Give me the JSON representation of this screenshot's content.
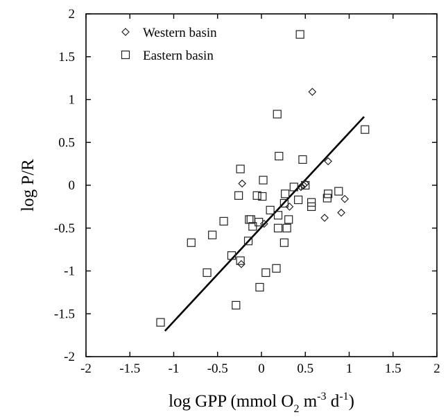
{
  "chart_data": {
    "type": "scatter",
    "xlabel": {
      "main": "log GPP (mmol O",
      "sub1": "2",
      "mid": " m",
      "sup1": "-3",
      "mid2": " d",
      "sup2": "-1",
      "end": ")"
    },
    "ylabel": "log P/R",
    "xlim": [
      -2,
      2
    ],
    "ylim": [
      -2,
      2
    ],
    "xticks": [
      -2,
      -1.5,
      -1,
      -0.5,
      0,
      0.5,
      1,
      1.5,
      2
    ],
    "yticks": [
      -2,
      -1.5,
      -1,
      -0.5,
      0,
      0.5,
      1,
      1.5,
      2
    ],
    "xtick_labels": [
      "-2",
      "-1.5",
      "-1",
      "-0.5",
      "0",
      "0.5",
      "1",
      "1.5",
      "2"
    ],
    "ytick_labels": [
      "-2",
      "-1.5",
      "-1",
      "-0.5",
      "0",
      "0.5",
      "1",
      "1.5",
      "2"
    ],
    "grid": false,
    "legend_position": "top-left",
    "series": [
      {
        "name": "Western basin",
        "marker": "diamond",
        "x": [
          0.58,
          -0.22,
          -0.23,
          0.03,
          0.32,
          0.45,
          0.5,
          0.76,
          0.72,
          0.91,
          0.95,
          0.48
        ],
        "y": [
          1.09,
          0.02,
          -0.92,
          -0.45,
          -0.25,
          -0.02,
          0.02,
          0.28,
          -0.38,
          -0.32,
          -0.16,
          0.0
        ]
      },
      {
        "name": "Eastern basin",
        "marker": "square",
        "x": [
          0.44,
          0.18,
          1.18,
          0.2,
          -0.24,
          0.47,
          0.02,
          -0.05,
          0.01,
          0.37,
          0.27,
          0.26,
          0.42,
          0.5,
          0.57,
          0.57,
          0.76,
          0.75,
          0.88,
          -0.26,
          -0.43,
          -0.56,
          -0.8,
          -0.62,
          -0.34,
          -0.24,
          -0.15,
          -0.14,
          -0.12,
          -0.1,
          -0.03,
          0.1,
          0.19,
          0.19,
          0.29,
          0.31,
          0.26,
          0.05,
          0.17,
          -0.02,
          -0.29,
          -1.15
        ],
        "y": [
          1.76,
          0.83,
          0.65,
          0.34,
          0.19,
          0.3,
          0.06,
          -0.12,
          -0.13,
          -0.02,
          -0.1,
          -0.21,
          -0.17,
          0.0,
          -0.2,
          -0.25,
          -0.1,
          -0.15,
          -0.07,
          -0.12,
          -0.42,
          -0.58,
          -0.67,
          -1.02,
          -0.82,
          -0.88,
          -0.65,
          -0.4,
          -0.4,
          -0.48,
          -0.43,
          -0.29,
          -0.35,
          -0.5,
          -0.5,
          -0.4,
          -0.67,
          -1.02,
          -0.97,
          -1.19,
          -1.4,
          -1.6
        ]
      }
    ],
    "fit_line": {
      "x": [
        -1.1,
        1.17
      ],
      "y": [
        -1.7,
        0.8
      ]
    }
  }
}
